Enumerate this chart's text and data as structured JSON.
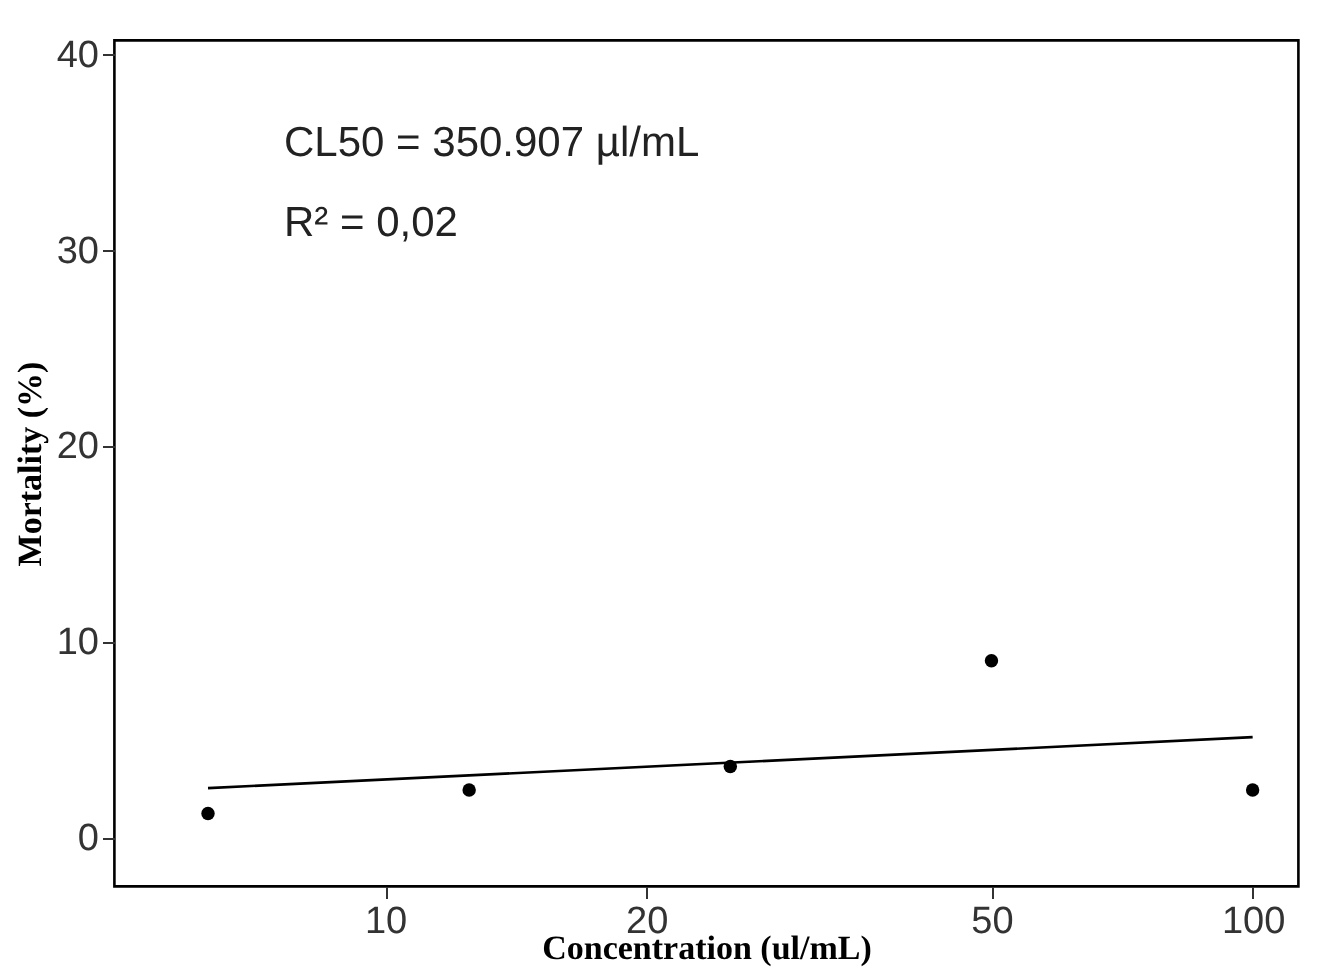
{
  "chart_data": {
    "type": "scatter",
    "xlabel": "Concentration (ul/mL)",
    "ylabel": "Mortality (%)",
    "annotations": [
      "CL50 =  350.907 µl/mL",
      "R² = 0,02"
    ],
    "log": "x",
    "xlim": [
      4.87,
      112.8
    ],
    "xticks": [
      10,
      20,
      50,
      100
    ],
    "ylim": [
      -2.5,
      40.7
    ],
    "yticks": [
      0,
      10,
      20,
      30,
      40
    ],
    "grid": false,
    "series": [
      {
        "color": "#000000",
        "marker": "circle",
        "x": [
          6.25,
          12.5,
          25,
          50,
          100
        ],
        "values": [
          1.2,
          2.4,
          3.6,
          9.0,
          2.4
        ]
      },
      {
        "type": "line",
        "color": "#000000",
        "x": [
          6.25,
          100
        ],
        "values": [
          2.5,
          5.1
        ],
        "line_style": "solid"
      }
    ]
  }
}
